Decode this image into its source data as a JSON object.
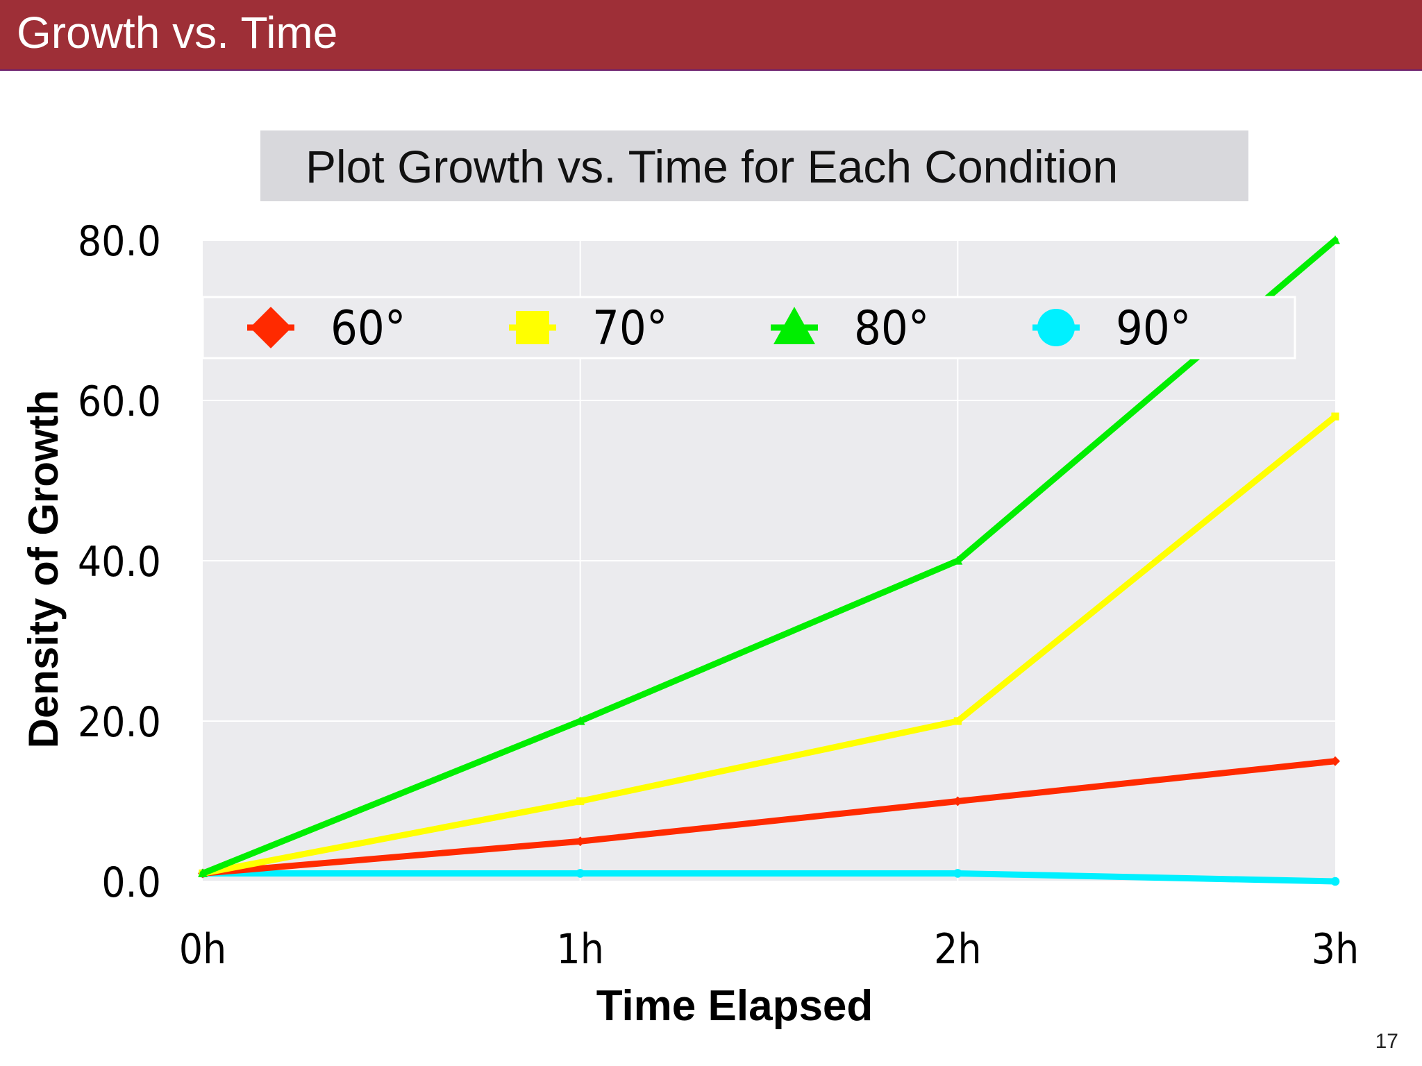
{
  "header": {
    "title": "Growth vs. Time"
  },
  "subtitle": "Plot Growth vs. Time for Each Condition",
  "page_number": "17",
  "chart_data": {
    "type": "line",
    "title": "",
    "xlabel": "Time Elapsed",
    "ylabel": "Density of Growth",
    "categories": [
      "0h",
      "1h",
      "2h",
      "3h"
    ],
    "ylim": [
      0,
      80
    ],
    "yticks": [
      "0.0",
      "20.0",
      "40.0",
      "60.0",
      "80.0"
    ],
    "grid": true,
    "legend_position": "top",
    "series": [
      {
        "name": "60°",
        "color": "#ff2a00",
        "marker": "diamond",
        "values": [
          1,
          5,
          10,
          15
        ]
      },
      {
        "name": "70°",
        "color": "#ffff00",
        "marker": "square",
        "values": [
          1,
          10,
          20,
          58
        ]
      },
      {
        "name": "80°",
        "color": "#00ee00",
        "marker": "triangle",
        "values": [
          1,
          20,
          40,
          80
        ]
      },
      {
        "name": "90°",
        "color": "#00f0ff",
        "marker": "circle",
        "values": [
          1,
          1,
          1,
          0
        ]
      }
    ]
  }
}
